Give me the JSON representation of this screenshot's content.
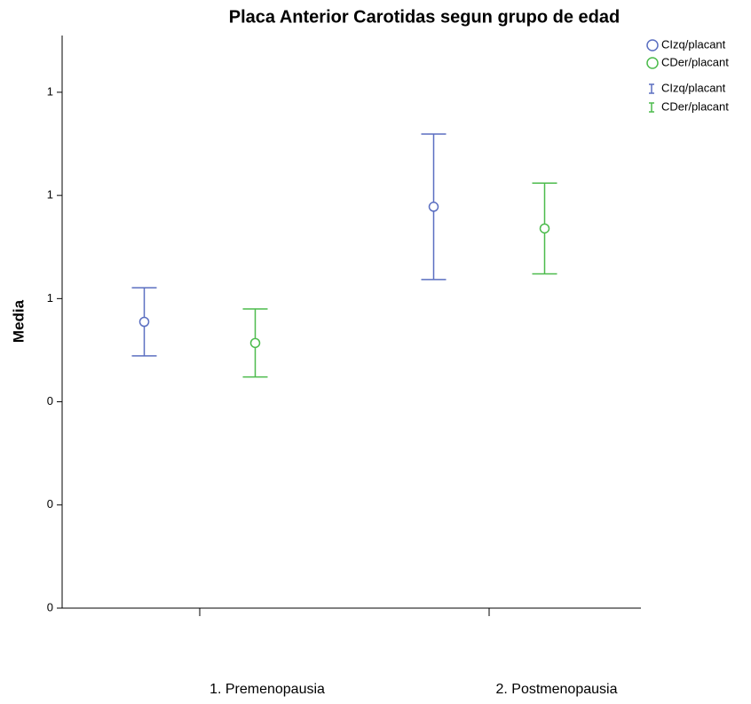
{
  "chart_data": {
    "type": "errorbar",
    "title": "Placa Anterior Carotidas segun grupo de edad",
    "y_label": "Media",
    "categories": [
      "1. Premenopausia",
      "2. Postmenopausia"
    ],
    "series": [
      {
        "name": "CIzq/placant",
        "color": "#5b6fc1",
        "values": [
          0.555,
          0.778
        ],
        "errors": [
          0.066,
          0.141
        ]
      },
      {
        "name": "CDer/placant",
        "color": "#4cbb4c",
        "values": [
          0.514,
          0.736
        ],
        "errors": [
          0.066,
          0.088
        ]
      }
    ],
    "ylim": [
      0,
      1.11
    ],
    "yticks": [
      0,
      {
        "value": 0.2,
        "label": "0"
      },
      {
        "value": 0.4,
        "label": "0"
      },
      {
        "value": 0.6,
        "label": "1"
      },
      {
        "value": 0.8,
        "label": "1"
      },
      {
        "value": 1.0,
        "label": "1"
      }
    ]
  }
}
